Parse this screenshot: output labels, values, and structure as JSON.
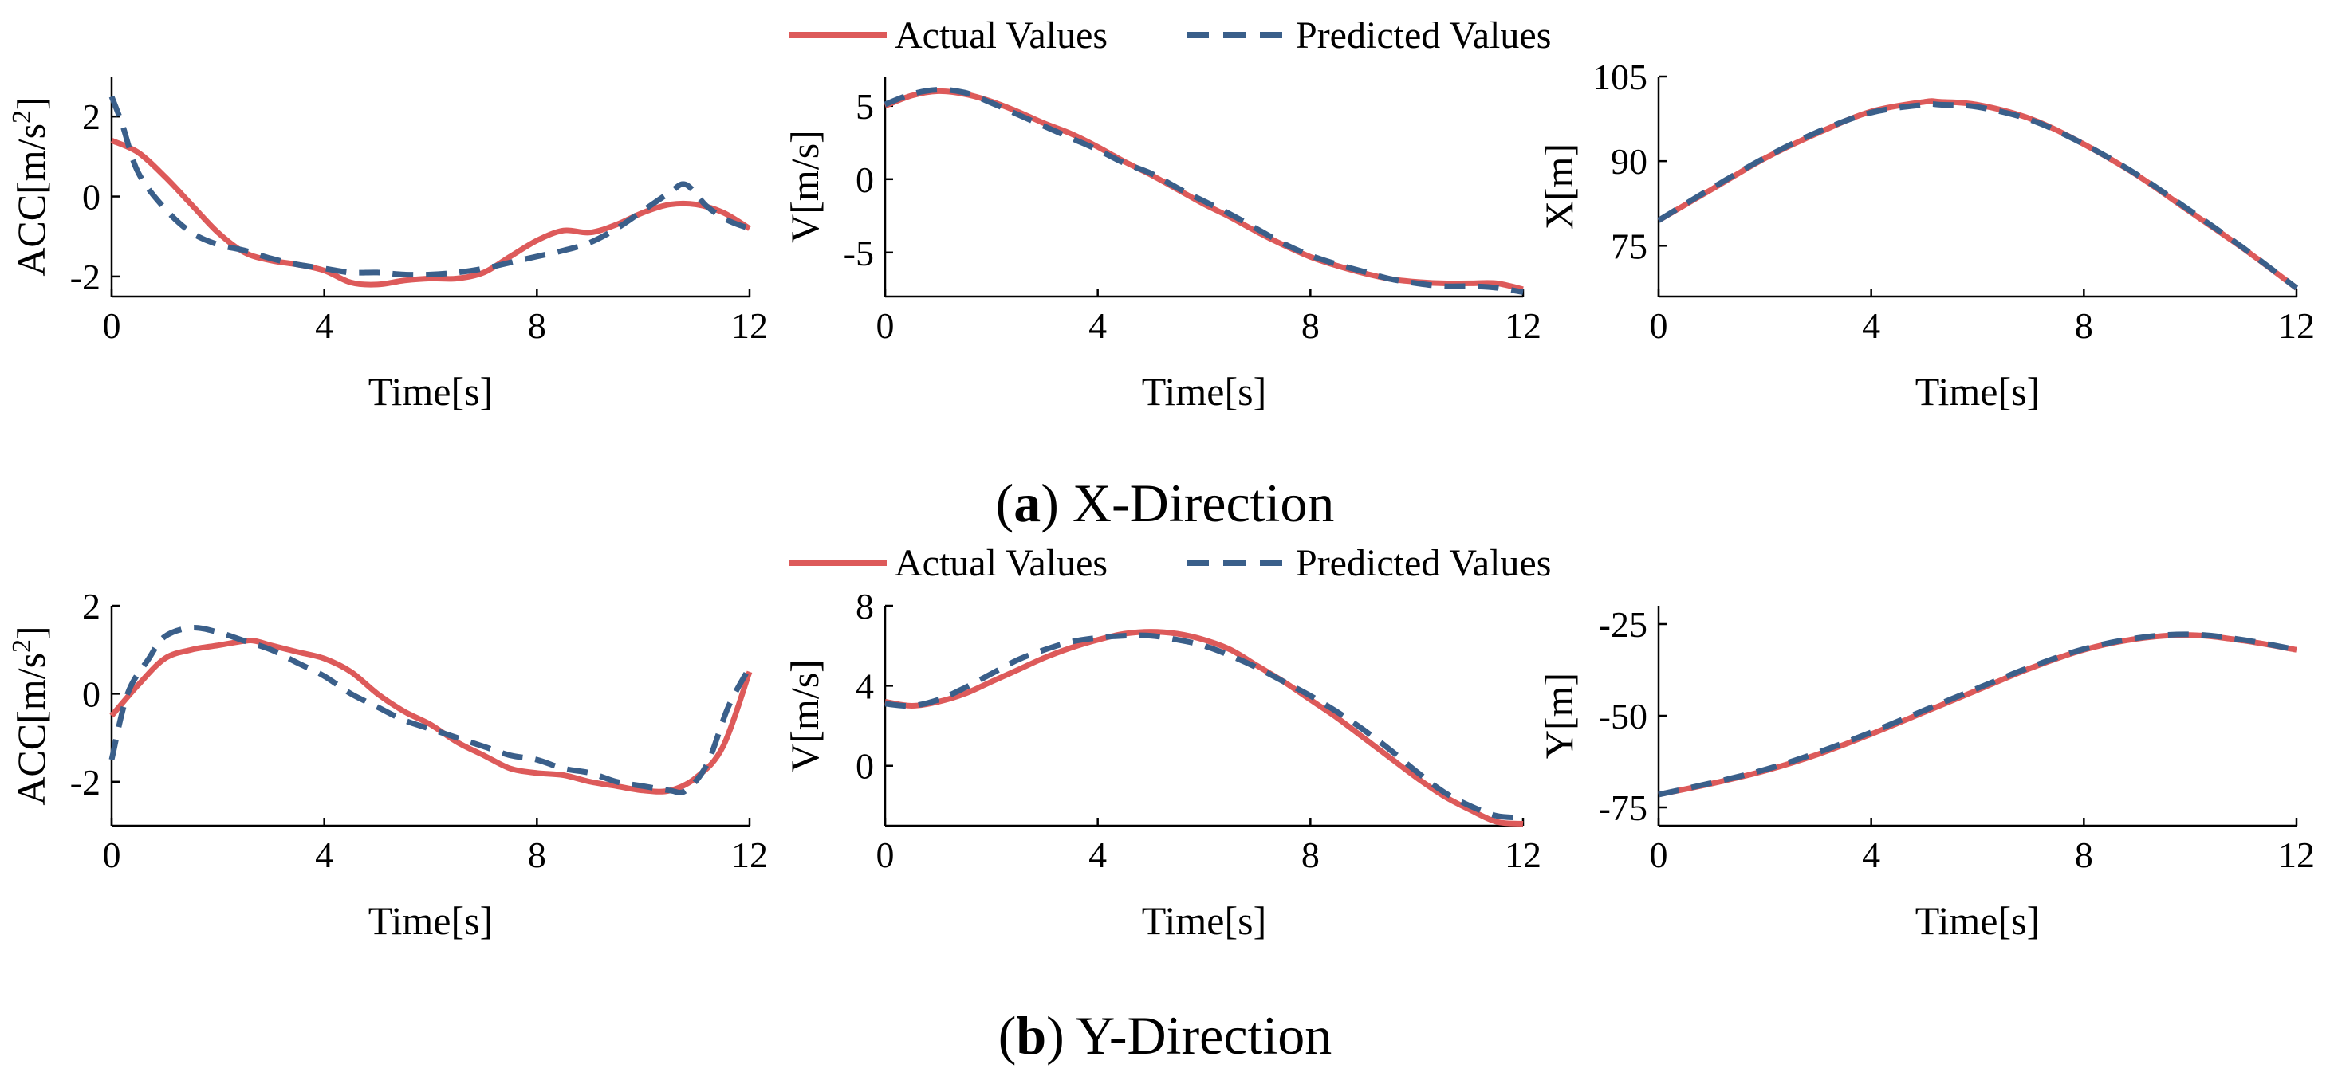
{
  "legend": {
    "actual_label": "Actual Values",
    "predicted_label": "Predicted Values",
    "actual_color": "#dd5a5a",
    "predicted_color": "#3a5f8a"
  },
  "captions": {
    "a_letter": "a",
    "a_text": "X-Direction",
    "b_letter": "b",
    "b_text": "Y-Direction"
  },
  "chart_data": [
    {
      "id": "ax",
      "type": "line",
      "ylabel_base": "ACC[m/s",
      "ylabel_sup": "2",
      "ylabel_close": "]",
      "xlabel": "Time[s]",
      "xlim": [
        0,
        12
      ],
      "ylim": [
        -2.5,
        3.0
      ],
      "xticks": [
        0,
        4,
        8,
        12
      ],
      "yticks": [
        -2,
        0,
        2
      ],
      "series": [
        {
          "name": "Actual Values",
          "x": [
            0,
            0.5,
            1,
            1.5,
            2,
            2.5,
            3,
            3.5,
            4,
            4.5,
            5,
            5.5,
            6,
            6.5,
            7,
            7.5,
            8,
            8.5,
            9,
            9.5,
            10,
            10.5,
            11,
            11.5,
            12
          ],
          "y": [
            1.4,
            1.1,
            0.5,
            -0.2,
            -0.9,
            -1.4,
            -1.6,
            -1.7,
            -1.85,
            -2.15,
            -2.2,
            -2.1,
            -2.05,
            -2.05,
            -1.9,
            -1.5,
            -1.1,
            -0.85,
            -0.9,
            -0.7,
            -0.4,
            -0.2,
            -0.2,
            -0.4,
            -0.8
          ]
        },
        {
          "name": "Predicted Values",
          "x": [
            0,
            0.2,
            0.5,
            1,
            1.5,
            2,
            2.5,
            3,
            3.5,
            4,
            4.5,
            5,
            5.5,
            6,
            6.5,
            7,
            7.5,
            8,
            8.5,
            9,
            9.5,
            10,
            10.5,
            10.8,
            11.2,
            11.6,
            12
          ],
          "y": [
            2.5,
            1.8,
            0.6,
            -0.3,
            -0.9,
            -1.2,
            -1.35,
            -1.55,
            -1.7,
            -1.8,
            -1.9,
            -1.9,
            -1.95,
            -1.95,
            -1.9,
            -1.8,
            -1.65,
            -1.5,
            -1.35,
            -1.15,
            -0.8,
            -0.35,
            0.1,
            0.3,
            -0.25,
            -0.6,
            -0.8
          ]
        }
      ]
    },
    {
      "id": "vx",
      "type": "line",
      "ylabel": "V[m/s]",
      "xlabel": "Time[s]",
      "xlim": [
        0,
        12
      ],
      "ylim": [
        -8,
        7
      ],
      "xticks": [
        0,
        4,
        8,
        12
      ],
      "yticks": [
        -5,
        0,
        5
      ],
      "series": [
        {
          "name": "Actual Values",
          "x": [
            0,
            0.5,
            1,
            1.5,
            2,
            2.5,
            3,
            3.5,
            4,
            4.5,
            5,
            5.5,
            6,
            6.5,
            7,
            7.5,
            8,
            8.5,
            9,
            9.5,
            10,
            10.5,
            11,
            11.5,
            12
          ],
          "y": [
            5.0,
            5.7,
            6.0,
            5.8,
            5.3,
            4.6,
            3.8,
            3.1,
            2.2,
            1.2,
            0.3,
            -0.7,
            -1.7,
            -2.6,
            -3.6,
            -4.5,
            -5.3,
            -5.9,
            -6.4,
            -6.8,
            -7.0,
            -7.1,
            -7.1,
            -7.1,
            -7.5
          ]
        },
        {
          "name": "Predicted Values",
          "x": [
            0,
            0.5,
            1,
            1.5,
            2,
            2.5,
            3,
            3.5,
            4,
            4.5,
            5,
            5.5,
            6,
            6.5,
            7,
            7.5,
            8,
            8.5,
            9,
            9.5,
            10,
            10.5,
            11,
            11.5,
            12
          ],
          "y": [
            5.1,
            5.8,
            6.1,
            5.9,
            5.2,
            4.4,
            3.6,
            2.8,
            2.0,
            1.1,
            0.4,
            -0.6,
            -1.5,
            -2.4,
            -3.4,
            -4.4,
            -5.2,
            -5.8,
            -6.3,
            -6.8,
            -7.1,
            -7.3,
            -7.3,
            -7.4,
            -7.7
          ]
        }
      ]
    },
    {
      "id": "px",
      "type": "line",
      "ylabel": "X[m]",
      "xlabel": "Time[s]",
      "xlim": [
        0,
        12
      ],
      "ylim": [
        66,
        105
      ],
      "xticks": [
        0,
        4,
        8,
        12
      ],
      "yticks": [
        75,
        90,
        105
      ],
      "series": [
        {
          "name": "Actual Values",
          "x": [
            0,
            1,
            2,
            3,
            4,
            5,
            5.3,
            6,
            7,
            8,
            9,
            10,
            11,
            12
          ],
          "y": [
            79.5,
            85.0,
            90.5,
            95.0,
            98.8,
            100.5,
            100.5,
            100.0,
            97.5,
            93.0,
            87.5,
            81.0,
            74.5,
            67.5
          ]
        },
        {
          "name": "Predicted Values",
          "x": [
            0,
            1,
            2,
            3,
            4,
            5,
            5.3,
            6,
            7,
            8,
            9,
            10,
            11,
            12
          ],
          "y": [
            79.5,
            85.2,
            90.6,
            95.2,
            98.6,
            100.0,
            100.0,
            99.6,
            97.3,
            93.0,
            87.6,
            81.2,
            74.6,
            67.5
          ]
        }
      ]
    },
    {
      "id": "ay",
      "type": "line",
      "ylabel_base": "ACC[m/s",
      "ylabel_sup": "2",
      "ylabel_close": "]",
      "xlabel": "Time[s]",
      "xlim": [
        0,
        12
      ],
      "ylim": [
        -3.0,
        2.0
      ],
      "xticks": [
        0,
        4,
        8,
        12
      ],
      "yticks": [
        -2,
        0,
        2
      ],
      "series": [
        {
          "name": "Actual Values",
          "x": [
            0,
            0.5,
            1,
            1.5,
            2,
            2.5,
            2.7,
            3,
            3.5,
            4,
            4.5,
            5,
            5.5,
            6,
            6.5,
            7,
            7.5,
            8,
            8.5,
            9,
            9.5,
            10,
            10.5,
            11,
            11.5,
            12
          ],
          "y": [
            -0.5,
            0.2,
            0.8,
            1.0,
            1.1,
            1.2,
            1.2,
            1.1,
            0.95,
            0.8,
            0.5,
            0.0,
            -0.4,
            -0.7,
            -1.1,
            -1.4,
            -1.7,
            -1.8,
            -1.85,
            -2.0,
            -2.1,
            -2.2,
            -2.2,
            -1.9,
            -1.2,
            0.5
          ]
        },
        {
          "name": "Predicted Values",
          "x": [
            0,
            0.3,
            0.7,
            1,
            1.5,
            2,
            2.5,
            3,
            3.5,
            4,
            4.5,
            5,
            5.5,
            6,
            6.5,
            7,
            7.5,
            8,
            8.5,
            9,
            9.5,
            10,
            10.5,
            10.8,
            11.2,
            11.6,
            12
          ],
          "y": [
            -1.5,
            0.0,
            0.8,
            1.3,
            1.5,
            1.4,
            1.2,
            1.0,
            0.7,
            0.4,
            0.0,
            -0.3,
            -0.6,
            -0.8,
            -1.0,
            -1.2,
            -1.4,
            -1.5,
            -1.7,
            -1.8,
            -2.0,
            -2.1,
            -2.2,
            -2.2,
            -1.6,
            -0.3,
            0.6
          ]
        }
      ]
    },
    {
      "id": "vy",
      "type": "line",
      "ylabel": "V[m/s]",
      "xlabel": "Time[s]",
      "xlim": [
        0,
        12
      ],
      "ylim": [
        -3.0,
        8.0
      ],
      "xticks": [
        0,
        4,
        8,
        12
      ],
      "yticks": [
        0,
        4,
        8
      ],
      "series": [
        {
          "name": "Actual Values",
          "x": [
            0,
            0.5,
            1,
            1.5,
            2,
            2.5,
            3,
            3.5,
            4,
            4.5,
            5,
            5.5,
            6,
            6.5,
            7,
            7.5,
            8,
            8.5,
            9,
            9.5,
            10,
            10.5,
            11,
            11.5,
            12
          ],
          "y": [
            3.2,
            3.0,
            3.2,
            3.6,
            4.2,
            4.8,
            5.4,
            5.9,
            6.3,
            6.6,
            6.7,
            6.6,
            6.3,
            5.8,
            5.0,
            4.2,
            3.3,
            2.4,
            1.4,
            0.4,
            -0.6,
            -1.5,
            -2.2,
            -2.8,
            -2.9
          ]
        },
        {
          "name": "Predicted Values",
          "x": [
            0,
            0.5,
            1,
            1.5,
            2,
            2.5,
            3,
            3.5,
            4,
            4.5,
            5,
            5.5,
            6,
            6.5,
            7,
            7.5,
            8,
            8.5,
            9,
            9.5,
            10,
            10.5,
            11,
            11.5,
            12
          ],
          "y": [
            3.1,
            3.0,
            3.3,
            3.9,
            4.6,
            5.3,
            5.8,
            6.2,
            6.4,
            6.5,
            6.5,
            6.3,
            6.0,
            5.5,
            4.9,
            4.2,
            3.5,
            2.7,
            1.8,
            0.8,
            -0.3,
            -1.3,
            -2.0,
            -2.5,
            -2.6
          ]
        }
      ]
    },
    {
      "id": "py",
      "type": "line",
      "ylabel": "Y[m]",
      "xlabel": "Time[s]",
      "xlim": [
        0,
        12
      ],
      "ylim": [
        -80,
        -20
      ],
      "xticks": [
        0,
        4,
        8,
        12
      ],
      "yticks": [
        -75,
        -50,
        -25
      ],
      "series": [
        {
          "name": "Actual Values",
          "x": [
            0,
            1,
            2,
            3,
            4,
            5,
            6,
            7,
            8,
            9,
            10,
            11,
            12
          ],
          "y": [
            -71.5,
            -68.5,
            -65.0,
            -60.5,
            -55.0,
            -49.0,
            -43.0,
            -37.0,
            -32.0,
            -29.0,
            -28.0,
            -29.5,
            -32.0
          ]
        },
        {
          "name": "Predicted Values",
          "x": [
            0,
            1,
            2,
            3,
            4,
            5,
            6,
            7,
            8,
            9,
            10,
            11,
            12
          ],
          "y": [
            -71.5,
            -68.3,
            -64.7,
            -60.0,
            -54.5,
            -48.5,
            -42.5,
            -36.7,
            -31.8,
            -28.8,
            -27.8,
            -29.3,
            -32.0
          ]
        }
      ]
    }
  ]
}
